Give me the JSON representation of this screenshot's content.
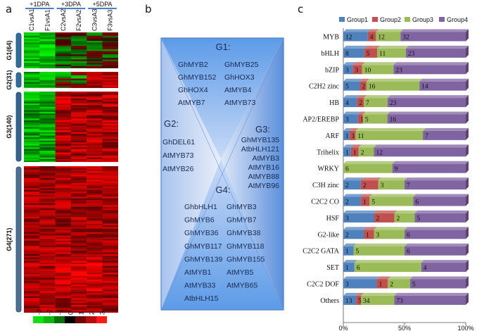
{
  "panels": {
    "a": "a",
    "b": "b",
    "c": "c"
  },
  "heatmap": {
    "dpa_labels": [
      "+1DPA",
      "+3DPA",
      "+5DPA"
    ],
    "columns": [
      "C1vsA1",
      "F1vsA1",
      "C2vsA2",
      "F2vsA2",
      "C3vsA3",
      "F3vsA3"
    ],
    "clusters": [
      {
        "label": "G1(64)",
        "count": 64,
        "pattern": "green_then_dark"
      },
      {
        "label": "G2(31)",
        "count": 31,
        "pattern": "green_then_mixed"
      },
      {
        "label": "G3(140)",
        "count": 140,
        "pattern": "green_then_red"
      },
      {
        "label": "G4(271)",
        "count": 271,
        "pattern": "red"
      }
    ],
    "scale_labels": [
      "-3",
      "-2",
      "-1",
      "0",
      "1",
      "2",
      "3"
    ],
    "scale_colors": [
      "#11e011",
      "#0bb80b",
      "#067006",
      "#000000",
      "#700606",
      "#b80b0b",
      "#ff1a1a"
    ]
  },
  "venn": {
    "groups": [
      {
        "title": "G1:",
        "genes": [
          "GhMYB2",
          "GhMYB25",
          "GhMYB152",
          "GhHOX3",
          "GhHOX4",
          "AtMYB4",
          "AtMYB7",
          "AtMYB73"
        ]
      },
      {
        "title": "G2:",
        "genes": [
          "GhDEL61",
          "AtMYB73",
          "AtMYB26"
        ]
      },
      {
        "title": "G3:",
        "genes": [
          "GhMYB135",
          "AtbHLH121",
          "AtMYB3",
          "AtMYB16",
          "AtMYB88",
          "AtMYB96"
        ]
      },
      {
        "title": "G4:",
        "genes": [
          "GhbHLH1",
          "GhMYB3",
          "GhMYB6",
          "GhMYB7",
          "GhMYB36",
          "GhMYB38",
          "GhMYB117",
          "GhMYB118",
          "GhMYB139",
          "GhMYB155",
          "AtMYB1",
          "AtMYB5",
          "AtMYB33",
          "AtMYB65",
          "AtbHLH15"
        ]
      }
    ]
  },
  "chart_data": {
    "type": "bar",
    "orientation": "horizontal",
    "stacked": "percent",
    "title": "",
    "xlabel": "",
    "ylabel": "",
    "xlim": [
      0,
      100
    ],
    "x_tick_labels": [
      "0%",
      "50%",
      "100%"
    ],
    "legend_position": "top",
    "categories": [
      "MYB",
      "bHLH",
      "bZIP",
      "C2H2 zinc",
      "HB",
      "AP2/EREBP",
      "ARF",
      "Trihelix",
      "WRKY",
      "C3H zinc",
      "C2C2 CO",
      "HSF",
      "G2-like",
      "C2C2 GATA",
      "SET",
      "C2C2 DOF",
      "Others"
    ],
    "series": [
      {
        "name": "Group1",
        "color": "#4f81bd",
        "values": [
          12,
          8,
          3,
          5,
          4,
          3,
          1,
          1,
          0,
          2,
          2,
          3,
          2,
          1,
          1,
          3,
          13
        ]
      },
      {
        "name": "Group2",
        "color": "#c0504d",
        "values": [
          4,
          5,
          3,
          2,
          2,
          1,
          1,
          1,
          0,
          2,
          1,
          2,
          1,
          0,
          0,
          1,
          5
        ]
      },
      {
        "name": "Group3",
        "color": "#9bbb59",
        "values": [
          12,
          11,
          10,
          16,
          7,
          5,
          11,
          2,
          6,
          3,
          5,
          2,
          3,
          5,
          6,
          2,
          34
        ]
      },
      {
        "name": "Group4",
        "color": "#8064a2",
        "values": [
          32,
          23,
          23,
          14,
          23,
          16,
          7,
          12,
          9,
          7,
          6,
          5,
          6,
          6,
          4,
          5,
          73
        ]
      }
    ]
  }
}
